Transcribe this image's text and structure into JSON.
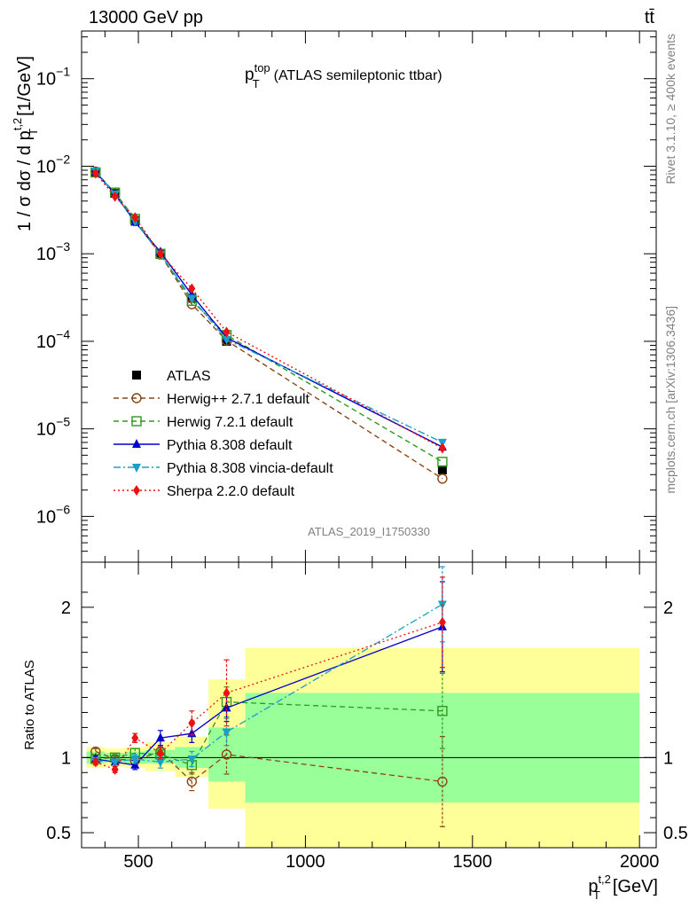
{
  "header": {
    "energy_label": "13000 GeV pp",
    "process_label": "tt̄"
  },
  "side_labels": {
    "rivet": "Rivet 3.1.10, ≥ 400k events",
    "mcplots": "mcplots.cern.ch [arXiv:1306.3436]"
  },
  "chart_data": {
    "type": "line",
    "title_main": "p",
    "title_sup": "top",
    "title_sub": "T",
    "title_rest": "(ATLAS semileptonic ttbar)",
    "analysis_id": "ATLAS_2019_I1750330",
    "x": [
      372,
      430,
      490,
      566,
      660,
      764,
      1410
    ],
    "xlim": [
      330,
      2050
    ],
    "x_ticks": [
      500,
      1000,
      1500,
      2000
    ],
    "x_tick_labels": [
      "500",
      "1000",
      "1500",
      "2000"
    ],
    "xlabel": {
      "main": "p",
      "sup": "t,2",
      "sub": "T",
      "rest": "[GeV]"
    },
    "top_panel": {
      "yscale": "log",
      "ylim": [
        3e-07,
        0.35
      ],
      "y_tick_values": [
        1e-06,
        1e-05,
        0.0001,
        0.001,
        0.01,
        0.1
      ],
      "y_tick_labels": [
        {
          "base": "10",
          "exp": "−6"
        },
        {
          "base": "10",
          "exp": "−5"
        },
        {
          "base": "10",
          "exp": "−4"
        },
        {
          "base": "10",
          "exp": "−3"
        },
        {
          "base": "10",
          "exp": "−2"
        },
        {
          "base": "10",
          "exp": "−1"
        }
      ],
      "ylabel": {
        "pre": "1 / σ dσ / d p",
        "sup": "t,2",
        "sub": "T",
        "post": "[1/GeV]"
      }
    },
    "ratio_panel": {
      "ylim": [
        0.4,
        2.3
      ],
      "y_tick_values": [
        0.5,
        1,
        2
      ],
      "y_tick_labels": [
        "0.5",
        "1",
        "2"
      ],
      "ylabel": "Ratio to ATLAS",
      "stat_band": [
        {
          "x0": 345,
          "x1": 400,
          "lo": 0.96,
          "hi": 1.04
        },
        {
          "x0": 400,
          "x1": 460,
          "lo": 0.97,
          "hi": 1.03
        },
        {
          "x0": 460,
          "x1": 520,
          "lo": 0.96,
          "hi": 1.04
        },
        {
          "x0": 520,
          "x1": 610,
          "lo": 0.96,
          "hi": 1.05
        },
        {
          "x0": 610,
          "x1": 710,
          "lo": 0.93,
          "hi": 1.07
        },
        {
          "x0": 710,
          "x1": 820,
          "lo": 0.84,
          "hi": 1.2
        },
        {
          "x0": 820,
          "x1": 2000,
          "lo": 0.7,
          "hi": 1.43
        }
      ],
      "syst_band": [
        {
          "x0": 345,
          "x1": 400,
          "lo": 0.93,
          "hi": 1.07
        },
        {
          "x0": 400,
          "x1": 460,
          "lo": 0.94,
          "hi": 1.06
        },
        {
          "x0": 460,
          "x1": 520,
          "lo": 0.93,
          "hi": 1.07
        },
        {
          "x0": 520,
          "x1": 610,
          "lo": 0.91,
          "hi": 1.1
        },
        {
          "x0": 610,
          "x1": 710,
          "lo": 0.87,
          "hi": 1.14
        },
        {
          "x0": 710,
          "x1": 820,
          "lo": 0.66,
          "hi": 1.52
        },
        {
          "x0": 820,
          "x1": 2000,
          "lo": 0.4,
          "hi": 1.73
        }
      ]
    },
    "data": {
      "name": "ATLAS",
      "color": "#000000",
      "values": [
        0.0085,
        0.0049,
        0.0024,
        0.00098,
        0.00031,
        0.0001,
        3.4e-06
      ]
    },
    "series": [
      {
        "name": "Herwig++ 2.7.1 default",
        "color": "#8b4513",
        "marker": "circle",
        "dash": "6,4",
        "values": [
          0.0087,
          0.0049,
          0.00235,
          0.00098,
          0.000265,
          0.000102,
          2.7e-06
        ],
        "ratio": [
          1.04,
          0.99,
          0.98,
          1.04,
          0.84,
          1.02,
          0.84
        ],
        "ratio_err": [
          0.02,
          0.02,
          0.03,
          0.04,
          0.06,
          0.13,
          0.3
        ]
      },
      {
        "name": "Herwig 7.2.1 default",
        "color": "#2e9a1e",
        "marker": "square",
        "dash": "6,4",
        "values": [
          0.0085,
          0.005,
          0.0025,
          0.001,
          0.00029,
          0.000118,
          4.2e-06
        ],
        "ratio": [
          0.99,
          1.0,
          1.03,
          1.02,
          0.95,
          1.37,
          1.31
        ],
        "ratio_err": [
          0.02,
          0.02,
          0.03,
          0.04,
          0.06,
          0.1,
          0.25
        ]
      },
      {
        "name": "Pythia 8.308 default",
        "color": "#0000cc",
        "marker": "triangle-up",
        "dash": "",
        "values": [
          0.0086,
          0.0048,
          0.0023,
          0.00105,
          0.00034,
          0.00011,
          6.2e-06
        ],
        "ratio": [
          0.99,
          0.97,
          0.95,
          1.13,
          1.16,
          1.33,
          1.87
        ],
        "ratio_err": [
          0.02,
          0.02,
          0.03,
          0.05,
          0.06,
          0.09,
          0.3
        ]
      },
      {
        "name": "Pythia 8.308 vincia-default",
        "color": "#1aa0c8",
        "marker": "triangle-down",
        "dash": "8,3,2,3",
        "values": [
          0.0088,
          0.0048,
          0.00235,
          0.00098,
          0.00031,
          0.000105,
          7e-06
        ],
        "ratio": [
          0.98,
          0.97,
          0.99,
          0.97,
          0.99,
          1.17,
          2.02
        ],
        "ratio_err": [
          0.02,
          0.02,
          0.03,
          0.04,
          0.05,
          0.09,
          0.25
        ]
      },
      {
        "name": "Sherpa 2.2.0 default",
        "color": "#ee1111",
        "marker": "diamond",
        "dash": "2,3",
        "values": [
          0.0083,
          0.0045,
          0.0026,
          0.001,
          0.0004,
          0.000128,
          6e-06
        ],
        "ratio": [
          0.97,
          0.92,
          1.13,
          1.03,
          1.23,
          1.43,
          1.9
        ],
        "ratio_err": [
          0.02,
          0.02,
          0.03,
          0.04,
          0.08,
          0.22,
          0.3
        ]
      }
    ]
  }
}
